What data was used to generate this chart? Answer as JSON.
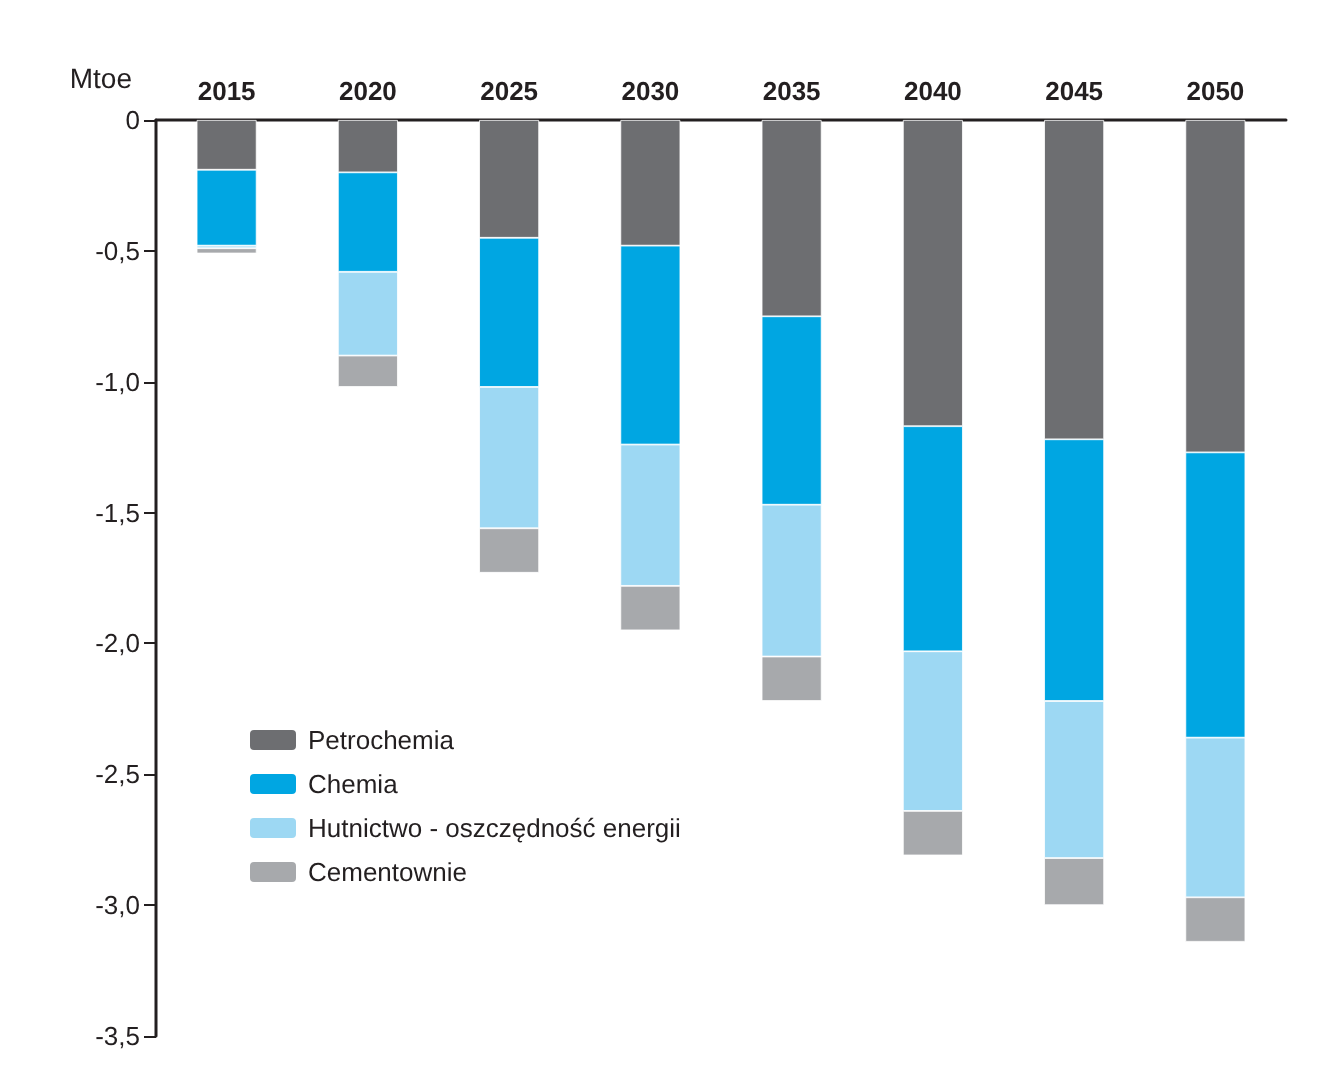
{
  "chart_data": {
    "type": "bar",
    "stacked": true,
    "ylabel": "Mtoe",
    "categories": [
      "2015",
      "2020",
      "2025",
      "2030",
      "2035",
      "2040",
      "2045",
      "2050"
    ],
    "series": [
      {
        "name": "Petrochemia",
        "color": "#6d6e71",
        "values": [
          -0.19,
          -0.2,
          -0.45,
          -0.48,
          -0.75,
          -1.17,
          -1.22,
          -1.27
        ]
      },
      {
        "name": "Chemia",
        "color": "#00a6e2",
        "values": [
          -0.29,
          -0.38,
          -0.57,
          -0.76,
          -0.72,
          -0.86,
          -1.0,
          -1.09
        ]
      },
      {
        "name": "Hutnictwo - oszczędność energii",
        "color": "#9dd8f3",
        "values": [
          -0.01,
          -0.32,
          -0.54,
          -0.54,
          -0.58,
          -0.61,
          -0.6,
          -0.61
        ]
      },
      {
        "name": "Cementownie",
        "color": "#a7a9ac",
        "values": [
          -0.02,
          -0.12,
          -0.17,
          -0.17,
          -0.17,
          -0.17,
          -0.18,
          -0.17
        ]
      }
    ],
    "ylim": [
      -3.5,
      0
    ],
    "yticks": [
      0,
      {
        "value": -0.5,
        "label": "-0,5"
      },
      {
        "value": -1,
        "label": "-1,0"
      },
      {
        "value": -1.5,
        "label": "-1,5"
      },
      {
        "value": -2,
        "label": "-2,0"
      },
      {
        "value": -2.5,
        "label": "-2,5"
      },
      {
        "value": -3,
        "label": "-3,0"
      },
      {
        "value": -3.5,
        "label": "-3,5"
      }
    ],
    "grid": false,
    "legend": "left"
  }
}
